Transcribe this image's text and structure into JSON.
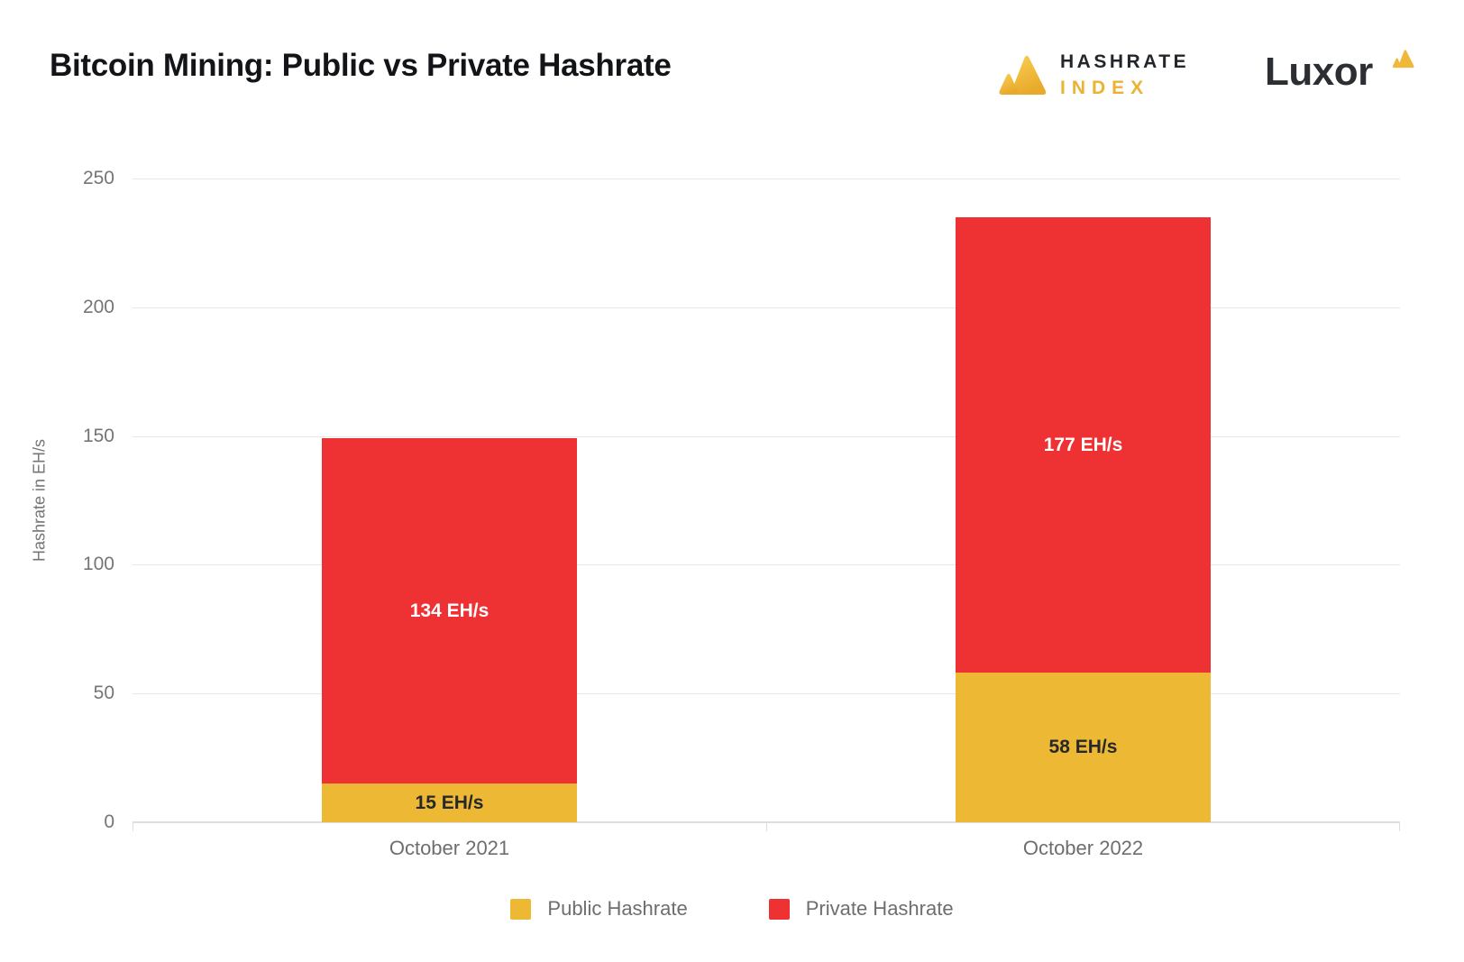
{
  "header": {
    "title": "Bitcoin Mining: Public vs Private Hashrate",
    "hashrate_index": {
      "line1": "HASHRATE",
      "line2": "INDEX"
    },
    "luxor": {
      "text": "Luxor"
    }
  },
  "chart_data": {
    "type": "bar",
    "stacked": true,
    "title": "Bitcoin Mining: Public vs Private Hashrate",
    "categories": [
      "October 2021",
      "October 2022"
    ],
    "series": [
      {
        "name": "Public Hashrate",
        "color": "#edb833",
        "label_color": "#26282b",
        "values": [
          15,
          58
        ],
        "labels": [
          "15 EH/s",
          "58 EH/s"
        ]
      },
      {
        "name": "Private Hashrate",
        "color": "#ee3132",
        "label_color": "#ffffff",
        "values": [
          134,
          177
        ],
        "labels": [
          "134 EH/s",
          "177 EH/s"
        ]
      }
    ],
    "totals": [
      149,
      235
    ],
    "xlabel": "",
    "ylabel": "Hashrate in EH/s",
    "ylim": [
      0,
      250
    ],
    "yticks": [
      0,
      50,
      100,
      150,
      200,
      250
    ],
    "grid": true,
    "legend_position": "bottom"
  },
  "colors": {
    "background": "#ffffff",
    "title_text": "#121417",
    "axis_text": "#757575",
    "category_text": "#6e6e6e",
    "gridline": "#e7e7e7",
    "baseline": "#dedede",
    "brand_dark": "#22262b",
    "brand_gold": "#ecb233",
    "public_bar": "#edb833",
    "private_bar": "#ee3132"
  }
}
